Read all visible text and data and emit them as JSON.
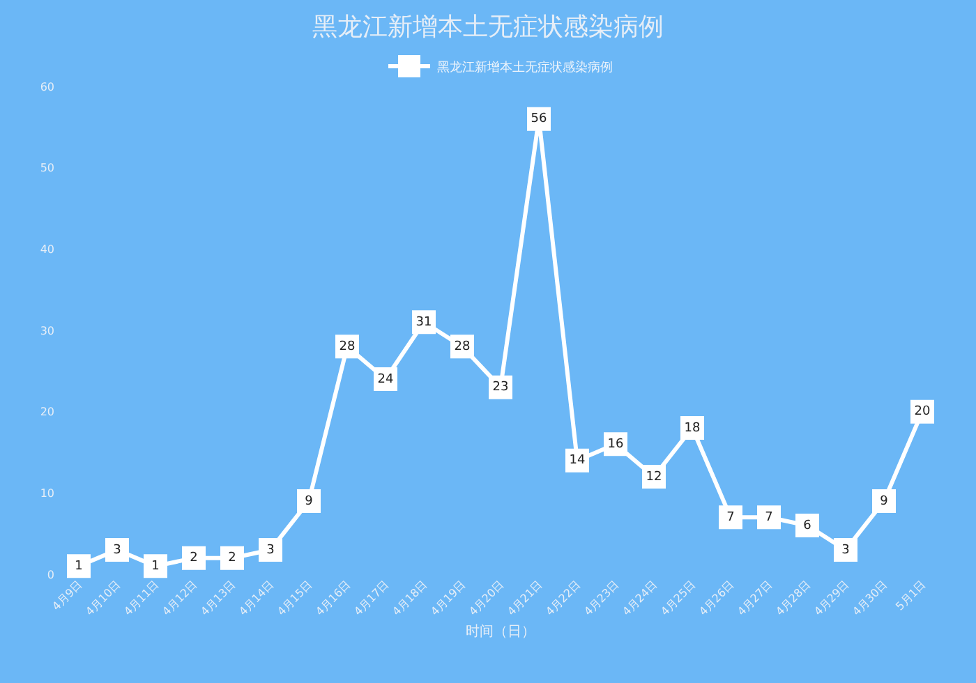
{
  "chart_data": {
    "type": "line",
    "title": "黑龙江新增本土无症状感染病例",
    "xlabel": "时间（日）",
    "categories": [
      "4月9日",
      "4月10日",
      "4月11日",
      "4月12日",
      "4月13日",
      "4月14日",
      "4月15日",
      "4月16日",
      "4月17日",
      "4月18日",
      "4月19日",
      "4月20日",
      "4月21日",
      "4月22日",
      "4月23日",
      "4月24日",
      "4月25日",
      "4月26日",
      "4月27日",
      "4月28日",
      "4月29日",
      "4月30日",
      "5月1日"
    ],
    "series": [
      {
        "name": "黑龙江新增本土无症状感染病例",
        "color": "#ffffff",
        "values": [
          1,
          3,
          1,
          2,
          2,
          3,
          9,
          28,
          24,
          31,
          28,
          23,
          56,
          14,
          16,
          12,
          18,
          7,
          7,
          6,
          3,
          9,
          20
        ]
      }
    ],
    "ylim": [
      0,
      60
    ],
    "yticks": [
      0,
      10,
      20,
      30,
      40,
      50,
      60
    ],
    "grid": false,
    "legend": "top",
    "marker": "square",
    "line_style": "solid",
    "data_labels": true
  }
}
